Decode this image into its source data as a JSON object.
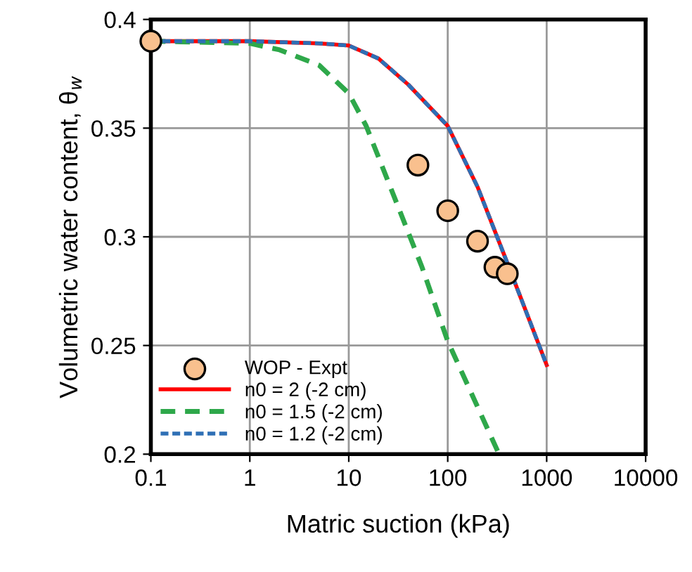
{
  "chart_data": {
    "type": "line",
    "xlabel": "Matric suction (kPa)",
    "ylabel": "Volumetric water content, θ$_{w}$",
    "log": "x",
    "xlim": [
      0.1,
      10000
    ],
    "xticks": [
      0.1,
      1,
      10,
      100,
      1000,
      10000
    ],
    "ylim": [
      0.2,
      0.4
    ],
    "yticks": [
      0.2,
      0.25,
      0.3,
      0.35,
      0.4
    ],
    "grid": true,
    "legend": "bottom left",
    "series": [
      {
        "name": "WOP - Expt",
        "type": "scatter",
        "marker": "circle",
        "color": "#f9c08e",
        "x": [
          0.1,
          50,
          100,
          200,
          300,
          400
        ],
        "values": [
          0.39,
          0.333,
          0.312,
          0.298,
          0.286,
          0.283
        ]
      },
      {
        "name": "n0 = 2 (-2 cm)",
        "line_style": "solid",
        "color": "#ff0000",
        "x": [
          0.1,
          1,
          5,
          10,
          20,
          40,
          100,
          200,
          400,
          1000
        ],
        "values": [
          0.39,
          0.39,
          0.389,
          0.388,
          0.382,
          0.37,
          0.351,
          0.323,
          0.288,
          0.241
        ]
      },
      {
        "name": "n0 = 1.5 (-2 cm)",
        "line_style": "dashed",
        "color": "#2ea84a",
        "x": [
          0.1,
          1,
          2,
          5,
          10,
          15,
          55,
          100,
          330
        ],
        "values": [
          0.39,
          0.389,
          0.386,
          0.379,
          0.366,
          0.351,
          0.286,
          0.252,
          0.2
        ]
      },
      {
        "name": "n0 = 1.2 (-2 cm)",
        "line_style": "dashed",
        "color": "#2e6fb5",
        "x": [
          0.1,
          1,
          5,
          10,
          20,
          40,
          100,
          200,
          400,
          1000
        ],
        "values": [
          0.39,
          0.39,
          0.389,
          0.388,
          0.382,
          0.37,
          0.351,
          0.323,
          0.288,
          0.241
        ]
      }
    ]
  }
}
